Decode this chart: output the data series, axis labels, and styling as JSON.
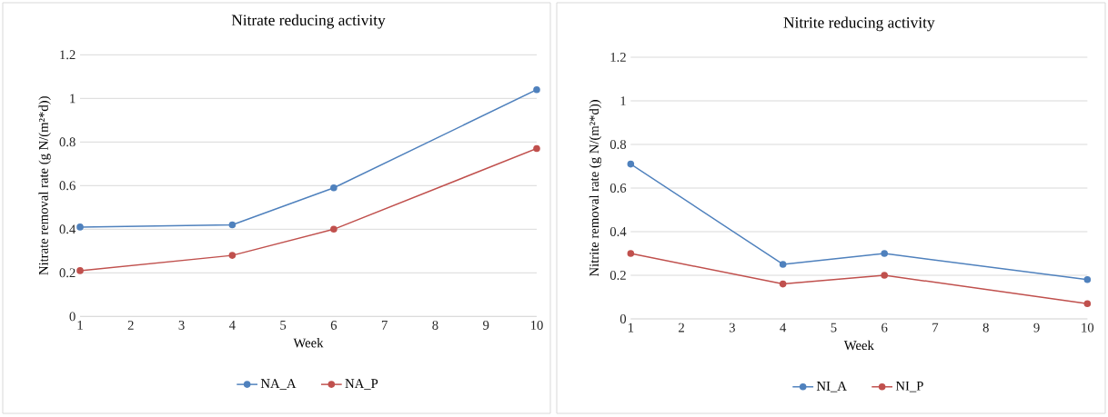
{
  "chart_data": [
    {
      "type": "line",
      "title": "Nitrate reducing activity",
      "xlabel": "Week",
      "ylabel": "Nitrate removal rate (g N/(m²*d))",
      "x": [
        1,
        4,
        6,
        10
      ],
      "series": [
        {
          "name": "NA_A",
          "color": "#4f81bd",
          "values": [
            0.41,
            0.42,
            0.59,
            1.04
          ]
        },
        {
          "name": "NA_P",
          "color": "#c0504d",
          "values": [
            0.21,
            0.28,
            0.4,
            0.77
          ]
        }
      ],
      "xlim": [
        1,
        10
      ],
      "xticks": [
        1,
        2,
        3,
        4,
        5,
        6,
        7,
        8,
        9,
        10
      ],
      "ylim": [
        0,
        1.2
      ],
      "yticks": [
        0,
        0.2,
        0.4,
        0.6,
        0.8,
        1,
        1.2
      ],
      "grid": "y",
      "legend": "bottom",
      "marker": "circle",
      "line_style": "solid"
    },
    {
      "type": "line",
      "title": "Nitrite reducing activity",
      "xlabel": "Week",
      "ylabel": "Nitrite removal rate (g N/(m²*d))",
      "x": [
        1,
        4,
        6,
        10
      ],
      "series": [
        {
          "name": "NI_A",
          "color": "#4f81bd",
          "values": [
            0.71,
            0.25,
            0.3,
            0.18
          ]
        },
        {
          "name": "NI_P",
          "color": "#c0504d",
          "values": [
            0.3,
            0.16,
            0.2,
            0.07
          ]
        }
      ],
      "xlim": [
        1,
        10
      ],
      "xticks": [
        1,
        2,
        3,
        4,
        5,
        6,
        7,
        8,
        9,
        10
      ],
      "ylim": [
        0,
        1.2
      ],
      "yticks": [
        0,
        0.2,
        0.4,
        0.6,
        0.8,
        1,
        1.2
      ],
      "grid": "y",
      "legend": "bottom",
      "marker": "circle",
      "line_style": "solid"
    }
  ]
}
